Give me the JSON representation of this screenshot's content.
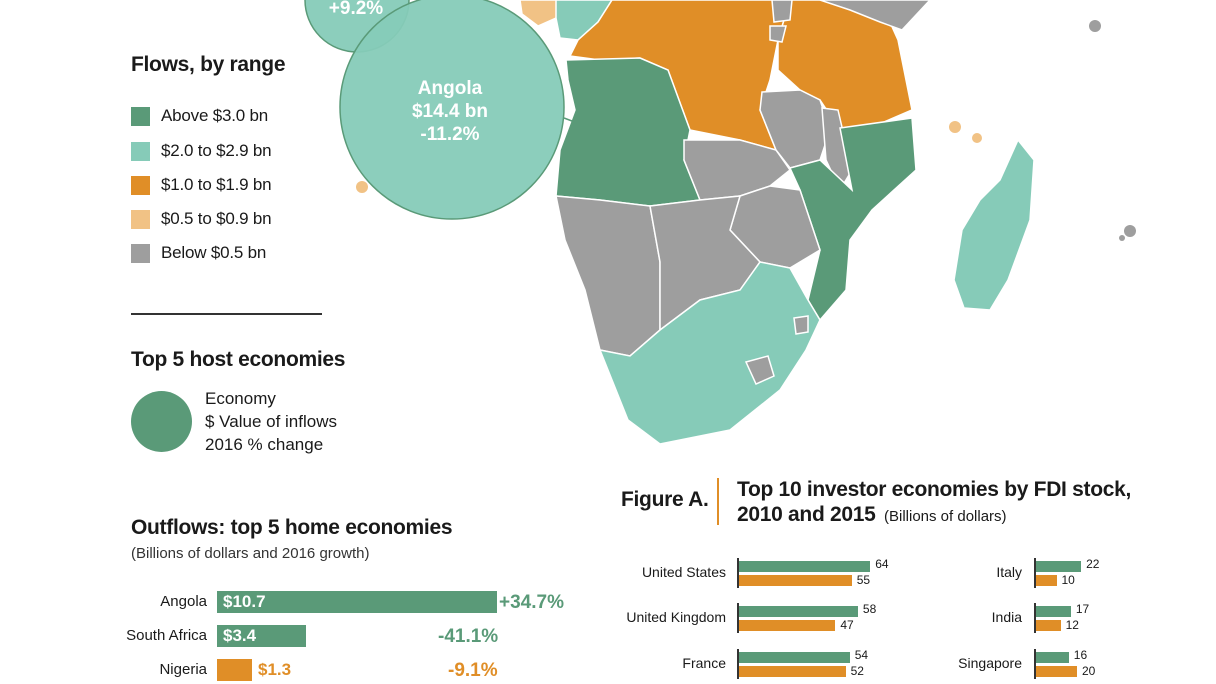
{
  "colors": {
    "above3": "#5a9a78",
    "from2to2_9": "#86cbb8",
    "from1to1_9": "#e08e27",
    "from05to09": "#f1c285",
    "below05": "#9e9e9e",
    "bar2010": "#5a9a78",
    "bar2015": "#e08e27"
  },
  "map": {
    "bubbles": [
      {
        "label_value": "+9.2%"
      },
      {
        "name": "Angola",
        "value": "$14.4 bn",
        "change": "-11.2%"
      }
    ]
  },
  "legend": {
    "title": "Flows, by range",
    "items": [
      {
        "label": "Above $3.0 bn",
        "color": "#5a9a78"
      },
      {
        "label": "$2.0 to $2.9 bn",
        "color": "#86cbb8"
      },
      {
        "label": "$1.0 to $1.9 bn",
        "color": "#e08e27"
      },
      {
        "label": "$0.5 to $0.9 bn",
        "color": "#f1c285"
      },
      {
        "label": "Below $0.5 bn",
        "color": "#9e9e9e"
      }
    ]
  },
  "host": {
    "title": "Top 5 host economies",
    "key_lines": [
      "Economy",
      "$ Value of inflows",
      "2016 % change"
    ]
  },
  "outflows": {
    "title": "Outflows: top 5 home economies",
    "subtitle": "(Billions of dollars and 2016 growth)",
    "rows": [
      {
        "name": "Angola",
        "value": 10.7,
        "value_label": "$10.7",
        "change": "+34.7%",
        "color": "#5a9a78"
      },
      {
        "name": "South Africa",
        "value": 3.4,
        "value_label": "$3.4",
        "change": "-41.1%",
        "color": "#5a9a78"
      },
      {
        "name": "Nigeria",
        "value": 1.3,
        "value_label": "$1.3",
        "change": "-9.1%",
        "color": "#e08e27"
      }
    ]
  },
  "figure": {
    "label": "Figure A.",
    "title": "Top 10 investor economies by FDI stock,",
    "title_line2": "2010 and 2015",
    "units": "(Billions of dollars)"
  },
  "chart_data": {
    "type": "bar",
    "title": "Top 10 investor economies by FDI stock, 2010 and 2015",
    "subtitle": "(Billions of dollars)",
    "categories": [
      "United States",
      "United Kingdom",
      "France",
      "Italy",
      "India",
      "Singapore"
    ],
    "series": [
      {
        "values": [
          64,
          58,
          54,
          22,
          17,
          16
        ]
      },
      {
        "values": [
          55,
          47,
          52,
          10,
          12,
          20
        ]
      }
    ]
  }
}
